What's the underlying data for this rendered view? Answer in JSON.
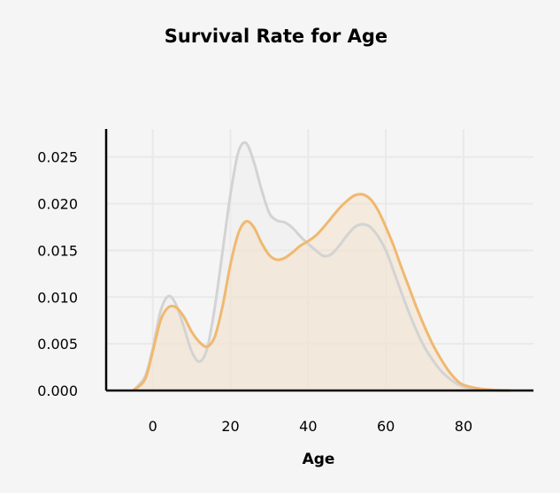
{
  "chart_data": {
    "type": "area",
    "title": "Survival Rate for Age",
    "xlabel": "Age",
    "ylabel": "",
    "xlim": [
      -12,
      98
    ],
    "ylim": [
      0,
      0.028
    ],
    "x_ticks": [
      "0",
      "20",
      "40",
      "60",
      "80"
    ],
    "y_ticks": [
      "0.000",
      "0.005",
      "0.010",
      "0.015",
      "0.020",
      "0.025"
    ],
    "grid": true,
    "legend": "none",
    "x": [
      -5,
      -2,
      0,
      2,
      4,
      6,
      8,
      10,
      12,
      14,
      16,
      18,
      20,
      22,
      24,
      26,
      28,
      30,
      32,
      34,
      36,
      38,
      40,
      42,
      44,
      46,
      48,
      50,
      52,
      54,
      56,
      58,
      60,
      62,
      64,
      66,
      68,
      70,
      72,
      74,
      76,
      78,
      80,
      84,
      88,
      92
    ],
    "series": [
      {
        "color": "#d3d3d3",
        "fill": "#ececec",
        "values": [
          0.0,
          0.0015,
          0.0045,
          0.0085,
          0.0101,
          0.0092,
          0.0068,
          0.0042,
          0.0031,
          0.0045,
          0.009,
          0.015,
          0.021,
          0.0255,
          0.0265,
          0.0245,
          0.0215,
          0.019,
          0.0182,
          0.018,
          0.0174,
          0.0165,
          0.0157,
          0.015,
          0.0144,
          0.0146,
          0.0155,
          0.0166,
          0.0175,
          0.0178,
          0.0175,
          0.0165,
          0.015,
          0.0128,
          0.0105,
          0.0083,
          0.0063,
          0.0046,
          0.0033,
          0.0022,
          0.0014,
          0.0008,
          0.0004,
          0.0001,
          3e-05,
          0.0
        ]
      },
      {
        "color": "#f0b870",
        "fill": "#f3e0c8",
        "values": [
          0.0,
          0.0012,
          0.0042,
          0.0075,
          0.0089,
          0.0089,
          0.0079,
          0.0063,
          0.0052,
          0.0047,
          0.0058,
          0.0091,
          0.0135,
          0.0168,
          0.0181,
          0.0175,
          0.0158,
          0.0145,
          0.014,
          0.0142,
          0.0148,
          0.0155,
          0.016,
          0.0166,
          0.0175,
          0.0185,
          0.0195,
          0.0203,
          0.0209,
          0.021,
          0.0205,
          0.0193,
          0.0175,
          0.0155,
          0.0132,
          0.011,
          0.0088,
          0.0068,
          0.005,
          0.0035,
          0.0022,
          0.0012,
          0.0006,
          0.0002,
          5e-05,
          0.0
        ]
      }
    ]
  }
}
